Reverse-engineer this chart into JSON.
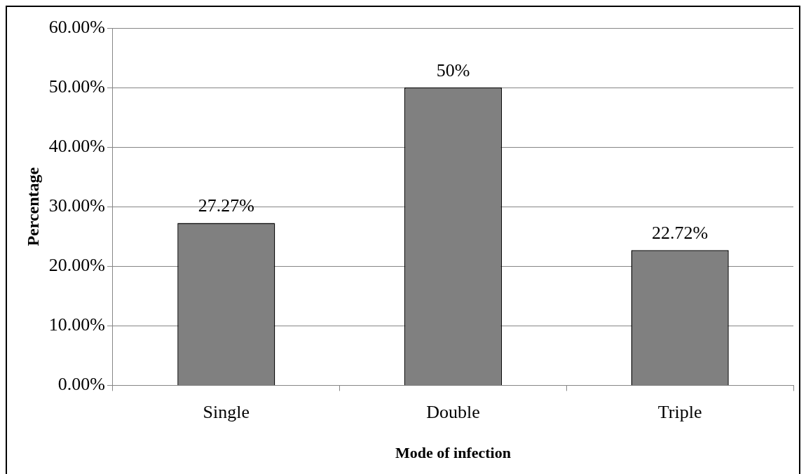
{
  "chart_data": {
    "type": "bar",
    "xlabel": "Mode of infection",
    "ylabel": "Percentage",
    "categories": [
      "Single",
      "Double",
      "Triple"
    ],
    "values": [
      27.27,
      50,
      22.72
    ],
    "color": "#808080",
    "value_labels": [
      "27.27%",
      "50%",
      "22.72%"
    ],
    "ylim": [
      0,
      60
    ],
    "yticks": [
      {
        "value": 0,
        "label": "0.00%"
      },
      {
        "value": 10,
        "label": "10.00%"
      },
      {
        "value": 20,
        "label": "20.00%"
      },
      {
        "value": 30,
        "label": "30.00%"
      },
      {
        "value": 40,
        "label": "40.00%"
      },
      {
        "value": 50,
        "label": "50.00%"
      },
      {
        "value": 60,
        "label": "60.00%"
      }
    ],
    "grid": "y",
    "legend": false
  }
}
